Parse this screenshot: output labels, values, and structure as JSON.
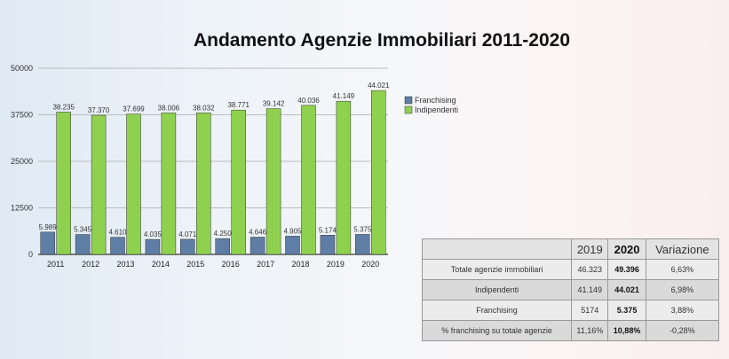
{
  "chart_data": {
    "type": "bar",
    "title": "Andamento Agenzie Immobiliari 2011-2020",
    "categories": [
      "2011",
      "2012",
      "2013",
      "2014",
      "2015",
      "2016",
      "2017",
      "2018",
      "2019",
      "2020"
    ],
    "series": [
      {
        "name": "Franchising",
        "color": "#5f7ea6",
        "values": [
          5989,
          5345,
          4610,
          4035,
          4071,
          4250,
          4646,
          4905,
          5174,
          5375
        ],
        "labels": [
          "5.989",
          "5.345",
          "4.610",
          "4.035",
          "4.071",
          "4.250",
          "4.646",
          "4.905",
          "5.174",
          "5.375"
        ]
      },
      {
        "name": "Indipendenti",
        "color": "#8fd14f",
        "values": [
          38235,
          37370,
          37699,
          38006,
          38032,
          38771,
          39142,
          40036,
          41149,
          44021
        ],
        "labels": [
          "38.235",
          "37.370",
          "37.699",
          "38.006",
          "38.032",
          "38.771",
          "39.142",
          "40.036",
          "41.149",
          "44.021"
        ]
      }
    ],
    "yticks": [
      "0",
      "12500",
      "25000",
      "37500",
      "50000"
    ],
    "ylim": [
      0,
      50000
    ],
    "grid": true,
    "legend": "right"
  },
  "table": {
    "headers": [
      "",
      "2019",
      "2020",
      "Variazione"
    ],
    "rows": [
      [
        "Totale agenzie immobiliari",
        "46.323",
        "49.396",
        "6,63%"
      ],
      [
        "Indipendenti",
        "41.149",
        "44.021",
        "6,98%"
      ],
      [
        "Franchising",
        "5174",
        "5.375",
        "3,88%"
      ],
      [
        "% franchising su totale agenzie",
        "11,16%",
        "10,88%",
        "-0,28%"
      ]
    ]
  }
}
